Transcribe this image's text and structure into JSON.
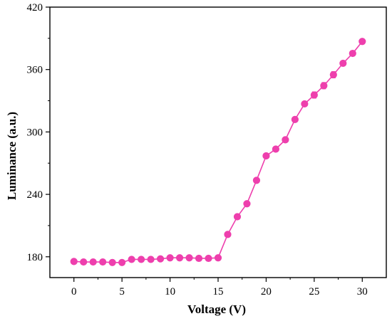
{
  "colors": {
    "series": "#ee3fad",
    "axis": "#000000",
    "background": "#ffffff"
  },
  "chart_data": {
    "type": "line",
    "title": "",
    "xlabel": "Voltage (V)",
    "ylabel": "Luminance (a.u.)",
    "xlim": [
      -2.5,
      32.5
    ],
    "ylim": [
      160,
      420
    ],
    "x_ticks": [
      0,
      5,
      10,
      15,
      20,
      25,
      30
    ],
    "y_ticks": [
      180,
      240,
      300,
      360,
      420
    ],
    "grid": false,
    "legend": "none",
    "marker": "circle",
    "series": [
      {
        "x": [
          0,
          1,
          2,
          3,
          4,
          5,
          6,
          7,
          8,
          9,
          10,
          11,
          12,
          13,
          14,
          15,
          16,
          17,
          18,
          19,
          20,
          21,
          22,
          23,
          24,
          25,
          26,
          27,
          28,
          29,
          30
        ],
        "y": [
          175.5,
          175,
          175,
          175,
          174.5,
          174.5,
          177.5,
          177.5,
          177.5,
          178,
          179,
          179,
          179,
          178.5,
          178.5,
          179,
          201.5,
          218.5,
          231,
          253.5,
          277,
          283.5,
          292.5,
          312,
          327,
          335.5,
          344.5,
          355,
          366,
          375.5,
          387
        ],
        "err": [
          1.5,
          1.5,
          1.5,
          1.5,
          1.5,
          1.5,
          1.5,
          1.5,
          1.5,
          1.5,
          1.5,
          1.5,
          1.5,
          1.5,
          1.5,
          1.5,
          1.5,
          1.5,
          1.5,
          2,
          1.5,
          1.5,
          1.5,
          1.5,
          1.5,
          3,
          3,
          3,
          1.5,
          1.5,
          1.5
        ]
      }
    ]
  }
}
